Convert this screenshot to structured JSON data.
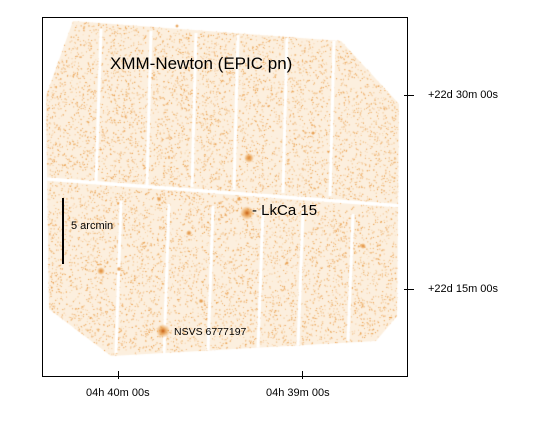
{
  "image": {
    "title": "XMM-Newton (EPIC pn)",
    "colors": {
      "background": "#ffffff",
      "counts": "#e89840",
      "source_core": "#c45a10",
      "frame": "#000000"
    }
  },
  "annotations": {
    "target": "- LkCa 15",
    "secondary": "NSVS 6777197",
    "scale_bar": "5 arcmin"
  },
  "axes": {
    "dec_ticks": [
      "+22d 30m 00s",
      "+22d 15m 00s"
    ],
    "ra_ticks": [
      "04h 40m 00s",
      "04h 39m 00s"
    ]
  }
}
